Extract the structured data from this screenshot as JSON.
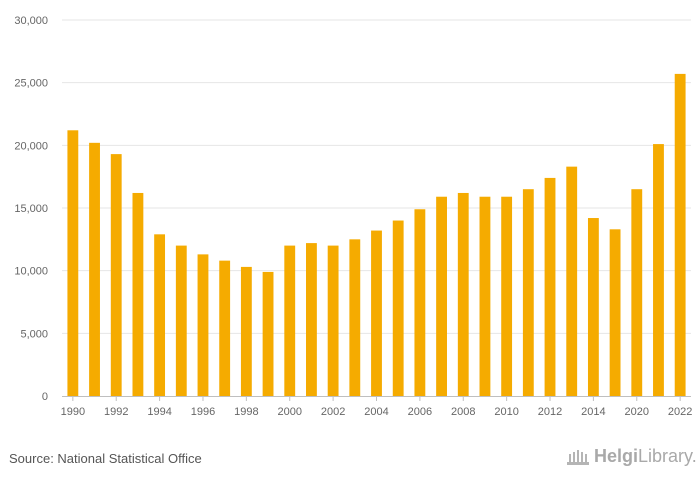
{
  "chart_data": {
    "type": "bar",
    "categories": [
      "1990",
      "1991",
      "1992",
      "1993",
      "1994",
      "1995",
      "1996",
      "1997",
      "1998",
      "1999",
      "2000",
      "2001",
      "2002",
      "2003",
      "2004",
      "2005",
      "2006",
      "2007",
      "2008",
      "2009",
      "2010",
      "2011",
      "2012",
      "2013",
      "2014",
      "2015",
      "2020",
      "2021",
      "2022"
    ],
    "values": [
      21200,
      20200,
      19300,
      16200,
      12900,
      12000,
      11300,
      10800,
      10300,
      9900,
      12000,
      12200,
      12000,
      12500,
      13200,
      14000,
      14900,
      15900,
      16200,
      15900,
      15900,
      16500,
      17400,
      18300,
      14200,
      13300,
      16500,
      20100,
      25700
    ],
    "x_tick_labels": [
      "1990",
      "1992",
      "1994",
      "1996",
      "1998",
      "2000",
      "2002",
      "2004",
      "2006",
      "2008",
      "2010",
      "2012",
      "2014",
      "2020",
      "2022"
    ],
    "y_ticks": [
      0,
      5000,
      10000,
      15000,
      20000,
      25000,
      30000
    ],
    "y_tick_labels": [
      "0",
      "5,000",
      "10,000",
      "15,000",
      "20,000",
      "25,000",
      "30,000"
    ],
    "ylim": [
      0,
      30000
    ],
    "title": "",
    "xlabel": "",
    "ylabel": "",
    "grid": true,
    "legend": "none",
    "bar_color": "#f5ab00",
    "grid_color": "#e6e6e6"
  },
  "footer": {
    "source": "Source: National Statistical Office",
    "logo_helgi": "Helgi",
    "logo_library": "Library."
  }
}
